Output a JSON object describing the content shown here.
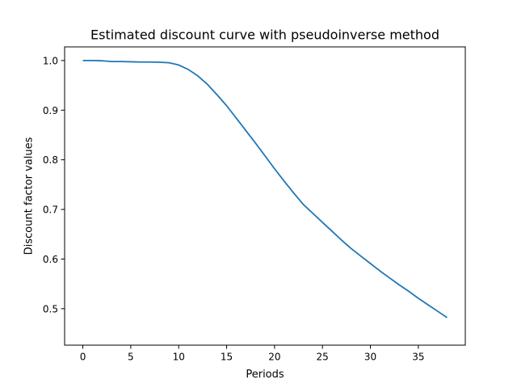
{
  "chart_data": {
    "type": "line",
    "title": "Estimated discount curve with pseudoinverse method",
    "xlabel": "Periods",
    "ylabel": "Discount factor values",
    "xlim": [
      -1.9,
      39.9
    ],
    "ylim": [
      0.4265,
      1.0275
    ],
    "xticks": [
      0,
      5,
      10,
      15,
      20,
      25,
      30,
      35
    ],
    "yticks": [
      0.5,
      0.6,
      0.7,
      0.8,
      0.9,
      1.0
    ],
    "ytick_labels": [
      "0.5",
      "0.6",
      "0.7",
      "0.8",
      "0.9",
      "1.0"
    ],
    "grid": false,
    "color": "#1f77b4",
    "series": [
      {
        "x": [
          0,
          1,
          2,
          3,
          4,
          5,
          6,
          7,
          8,
          9,
          10,
          11,
          12,
          13,
          14,
          15,
          16,
          17,
          18,
          19,
          20,
          21,
          22,
          23,
          24,
          25,
          26,
          27,
          28,
          29,
          30,
          31,
          32,
          33,
          34,
          35,
          36,
          37,
          38
        ],
        "values": [
          1.0,
          1.0,
          0.9995,
          0.998,
          0.998,
          0.9975,
          0.997,
          0.997,
          0.9965,
          0.9955,
          0.991,
          0.982,
          0.969,
          0.952,
          0.931,
          0.909,
          0.884,
          0.859,
          0.834,
          0.808,
          0.782,
          0.757,
          0.733,
          0.71,
          0.692,
          0.674,
          0.656,
          0.638,
          0.621,
          0.606,
          0.591,
          0.576,
          0.562,
          0.548,
          0.535,
          0.521,
          0.508,
          0.495,
          0.482
        ]
      }
    ]
  }
}
